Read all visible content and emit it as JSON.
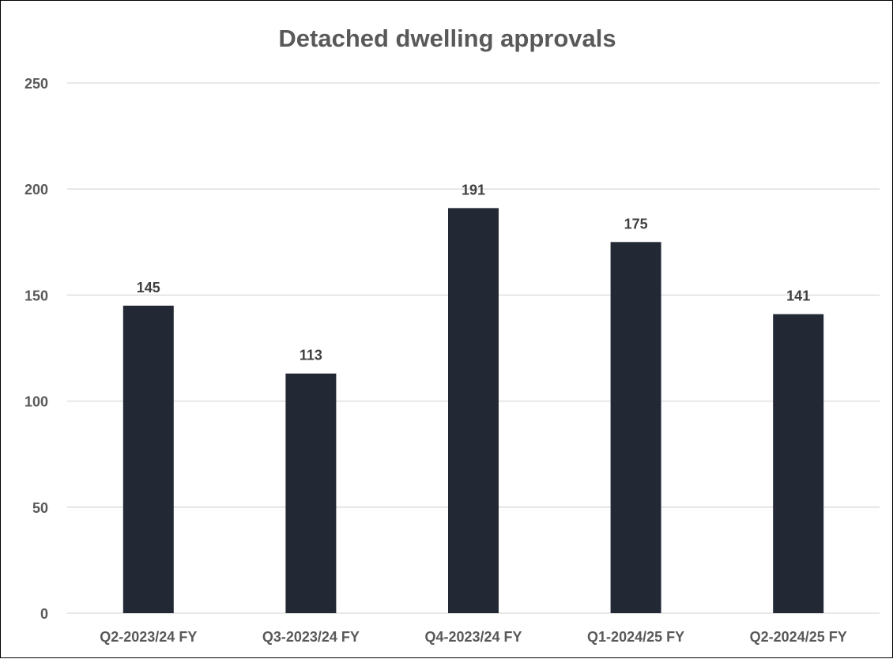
{
  "chart_data": {
    "type": "bar",
    "title": "Detached dwelling approvals",
    "xlabel": "",
    "ylabel": "",
    "categories": [
      "Q2-2023/24 FY",
      "Q3-2023/24 FY",
      "Q4-2023/24 FY",
      "Q1-2024/25 FY",
      "Q2-2024/25 FY"
    ],
    "values": [
      145,
      113,
      191,
      175,
      141
    ],
    "data_labels": [
      "145",
      "113",
      "191",
      "175",
      "141"
    ],
    "yticks": [
      0,
      50,
      100,
      150,
      200,
      250
    ],
    "ylim": [
      0,
      250
    ],
    "grid": true,
    "legend": "none",
    "colors": {
      "bar": "#222935",
      "gridline": "#d9d9d9",
      "axis_text": "#595959",
      "data_label": "#404040",
      "title": "#595959",
      "frame": "#000000"
    }
  }
}
